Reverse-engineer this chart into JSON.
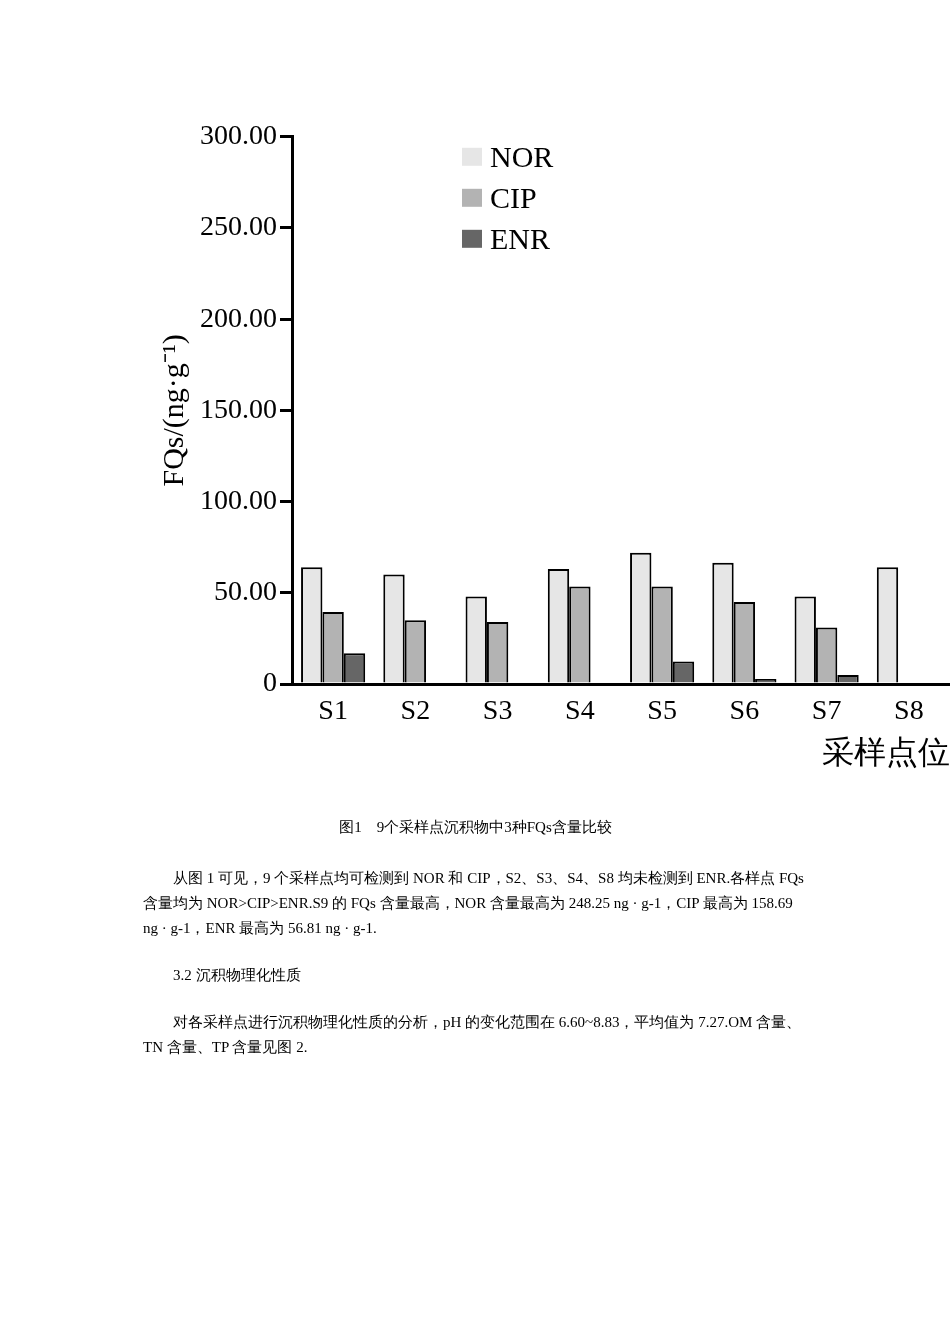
{
  "chart_data": {
    "type": "bar",
    "title": "图1　9个采样点沉积物中3种FQs含量比较",
    "xlabel": "采样点位",
    "ylabel": "FQs/(ng·g⁻¹)",
    "categories": [
      "S1",
      "S2",
      "S3",
      "S4",
      "S5",
      "S6",
      "S7",
      "S8"
    ],
    "series": [
      {
        "name": "NOR",
        "color": "#e6e6e6",
        "values": [
          64,
          60,
          48,
          63,
          72,
          66.5,
          48,
          64
        ]
      },
      {
        "name": "CIP",
        "color": "#b3b3b3",
        "values": [
          39.5,
          35,
          34,
          53.5,
          53.5,
          45,
          31,
          null
        ]
      },
      {
        "name": "ENR",
        "color": "#666666",
        "values": [
          16.8,
          null,
          null,
          null,
          12.4,
          2.7,
          5,
          null
        ]
      }
    ],
    "ylim": [
      0,
      300
    ],
    "yticks": [
      0,
      {
        "value": 50,
        "label": "50.00"
      },
      {
        "value": 100,
        "label": "100.00"
      },
      {
        "value": 150,
        "label": "150.00"
      },
      {
        "value": 200,
        "label": "200.00"
      },
      {
        "value": 250,
        "label": "250.00"
      },
      {
        "value": 300,
        "label": "300.00"
      }
    ],
    "grid": false,
    "legend": "top left",
    "annotations": [
      "从图 1 可见，9 个采样点均可检测到 NOR 和 CIP，S2、S3、S4、S8 均未检测到 ENR.各样点 FQs 含量均为 NOR>CIP>ENR.S9 的 FQs 含量最高，NOR 含量最高为 248.25 ng · g-1，CIP 最高为 158.69 ng · g-1，ENR 最高为 56.81 ng · g-1.",
      "3.2 沉积物理化性质",
      "对各采样点进行沉积物理化性质的分析，pH 的变化范围在 6.60~8.83，平均值为 7.27.OM 含量、TN 含量、TP 含量见图 2."
    ]
  }
}
